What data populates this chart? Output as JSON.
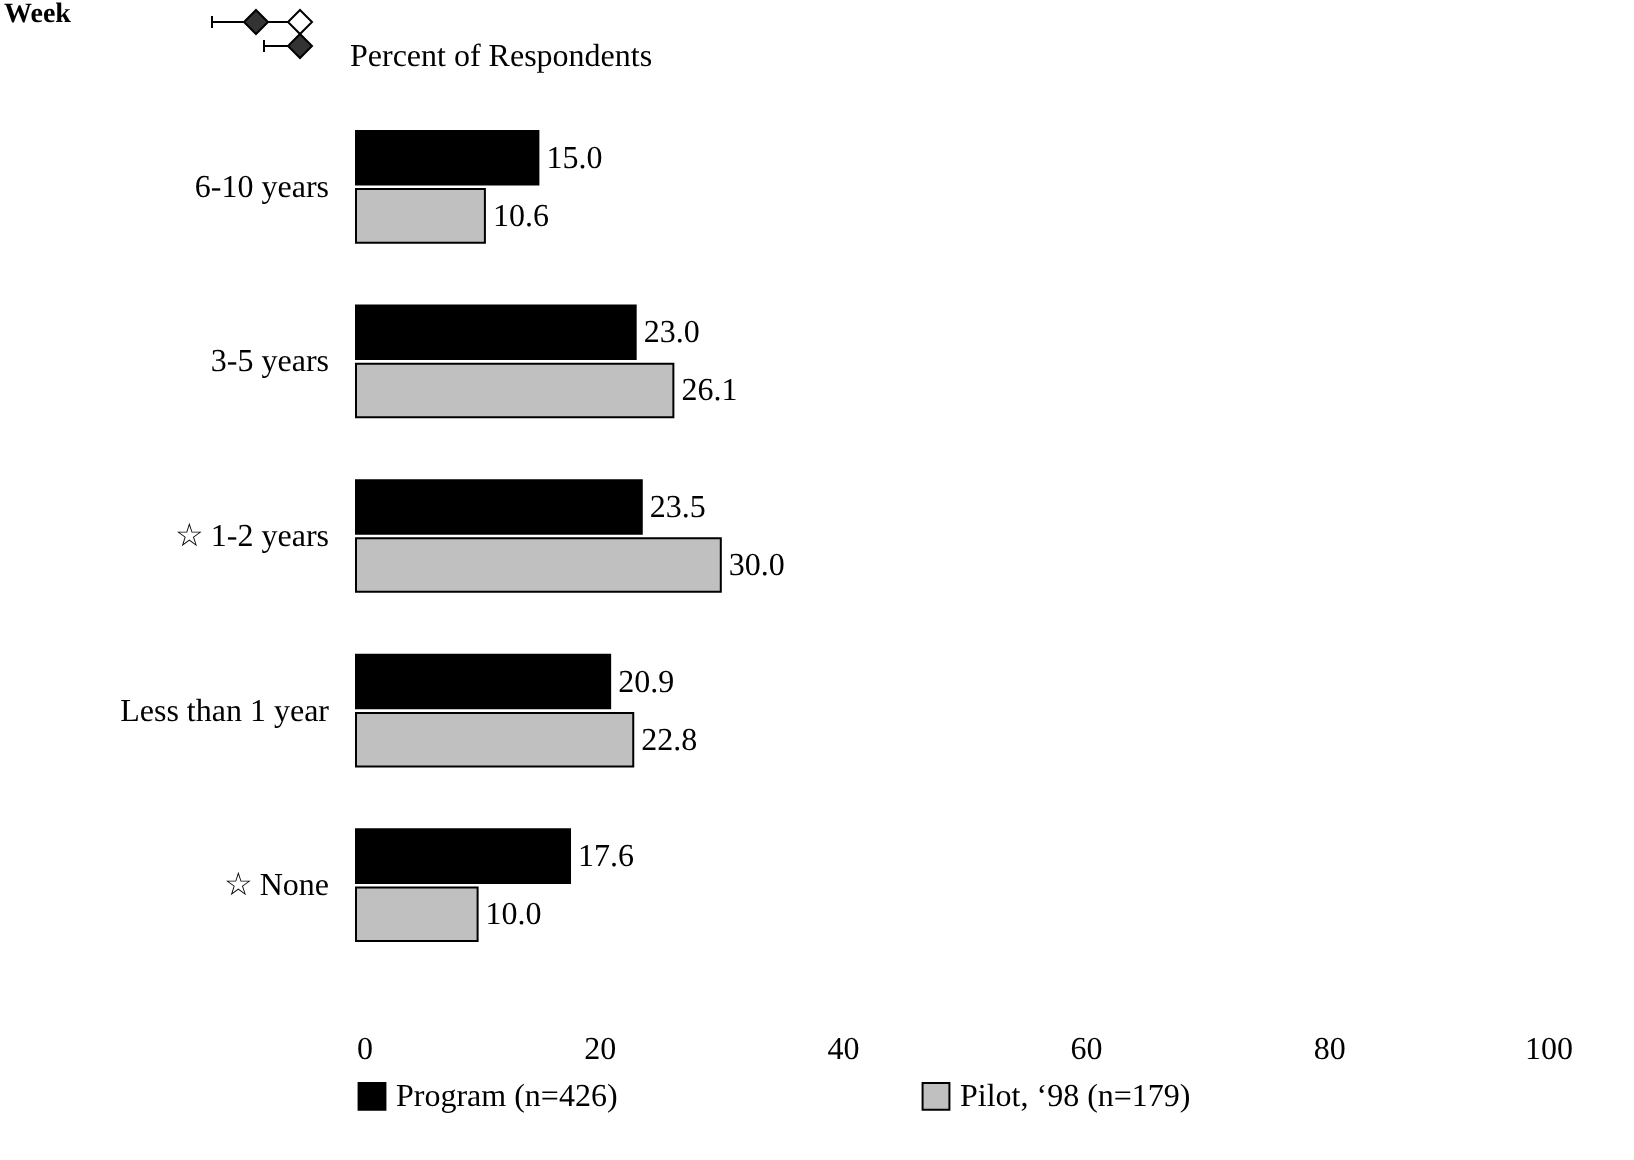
{
  "chart_data": {
    "type": "bar",
    "orientation": "horizontal",
    "subtitle": "Percent of Respondents",
    "annotations": [
      "Week"
    ],
    "categories": [
      "6-10 years",
      "3-5 years",
      "☆  1-2 years",
      "Less than 1 year",
      "☆  None"
    ],
    "series": [
      {
        "name": "Program (n=426)",
        "color": "#000000",
        "values": [
          15.0,
          23.0,
          23.5,
          20.9,
          17.6
        ],
        "value_labels": [
          "15.0",
          "23.0",
          "23.5",
          "20.9",
          "17.6"
        ]
      },
      {
        "name": "Pilot, ‘98 (n=179)",
        "color": "#c0c0c0",
        "values": [
          10.6,
          26.1,
          30.0,
          22.8,
          10.0
        ],
        "value_labels": [
          "10.6",
          "26.1",
          "30.0",
          "22.8",
          "10.0"
        ]
      }
    ],
    "xlim": [
      0,
      100
    ],
    "xticks": [
      0,
      20,
      40,
      60,
      80,
      100
    ],
    "grid": false,
    "legend": "bottom"
  }
}
